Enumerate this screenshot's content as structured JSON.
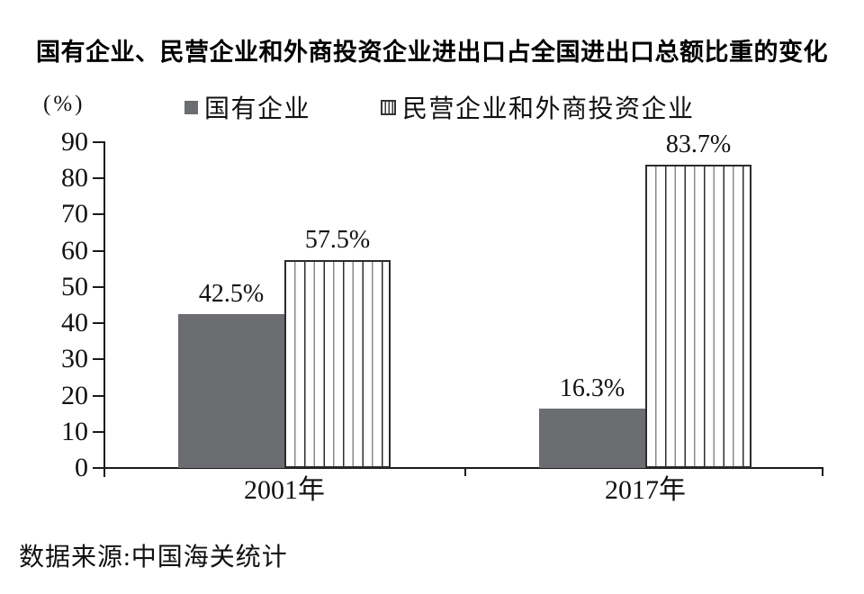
{
  "title": "国有企业、民营企业和外商投资企业进出口占全国进出口总额比重的变化",
  "y_axis_unit": "(%)",
  "source": "数据来源:中国海关统计",
  "legend": {
    "items": [
      {
        "label": "国有企业",
        "swatch": "solid-gray"
      },
      {
        "label": "民营企业和外商投资企业",
        "swatch": "vertical-stripes"
      }
    ]
  },
  "colors": {
    "solid_bar": "#6b6d70",
    "stripe_dark": "#2e2e2e",
    "stripe_light": "#8a8a8a",
    "axis": "#1a1a1a",
    "text": "#111111"
  },
  "chart_data": {
    "type": "bar",
    "categories": [
      "2001年",
      "2017年"
    ],
    "series": [
      {
        "name": "国有企业",
        "style": "solid",
        "values": [
          42.5,
          16.3
        ],
        "value_labels": [
          "42.5%",
          "16.3%"
        ]
      },
      {
        "name": "民营企业和外商投资企业",
        "style": "striped",
        "values": [
          57.5,
          83.7
        ],
        "value_labels": [
          "57.5%",
          "83.7%"
        ]
      }
    ],
    "ylabel": "(%)",
    "ylim": [
      0,
      90
    ],
    "yticks": [
      0,
      10,
      20,
      30,
      40,
      50,
      60,
      70,
      80,
      90
    ],
    "grid": false,
    "legend_position": "top"
  }
}
